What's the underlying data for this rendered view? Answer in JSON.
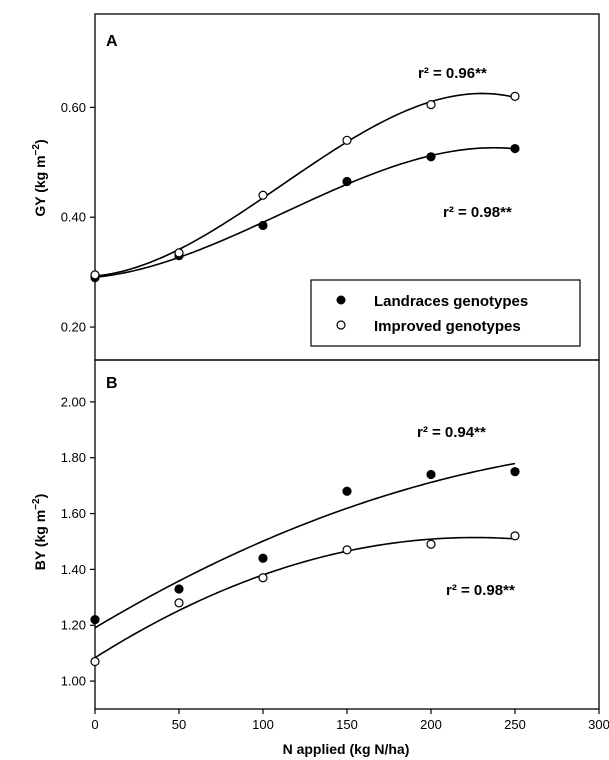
{
  "chart_data": [
    {
      "panel": "A",
      "type": "scatter",
      "ylabel": "GY (kg m⁻²)",
      "ylabel_main": "GY (kg m",
      "ylabel_sup": "−2",
      "ylabel_end": ")",
      "yticks": [
        "0.20",
        "0.40",
        "0.60"
      ],
      "ylim": [
        0.14,
        0.77
      ],
      "xlim": [
        0,
        300
      ],
      "series": [
        {
          "name": "Landraces genotypes",
          "marker": "filled",
          "x": [
            0,
            50,
            100,
            150,
            200,
            250
          ],
          "y": [
            0.29,
            0.33,
            0.385,
            0.465,
            0.51,
            0.525
          ],
          "fit_r2": "r² = 0.98**"
        },
        {
          "name": "Improved genotypes",
          "marker": "open",
          "x": [
            0,
            50,
            100,
            150,
            200,
            250
          ],
          "y": [
            0.295,
            0.335,
            0.44,
            0.54,
            0.605,
            0.62
          ],
          "fit_r2": "r² = 0.96**"
        }
      ],
      "legend_position": "bottom-right"
    },
    {
      "panel": "B",
      "type": "scatter",
      "ylabel": "BY (kg m⁻²)",
      "ylabel_main": "BY (kg m",
      "ylabel_sup": "−2",
      "ylabel_end": ")",
      "xlabel": "N applied (kg N/ha)",
      "yticks": [
        "1.00",
        "1.20",
        "1.40",
        "1.60",
        "1.80",
        "2.00"
      ],
      "xticks": [
        "0",
        "50",
        "100",
        "150",
        "200",
        "250",
        "300"
      ],
      "ylim": [
        0.9,
        2.15
      ],
      "xlim": [
        0,
        300
      ],
      "series": [
        {
          "name": "Landraces genotypes",
          "marker": "filled",
          "x": [
            0,
            50,
            100,
            150,
            200,
            250
          ],
          "y": [
            1.22,
            1.33,
            1.44,
            1.68,
            1.74,
            1.75
          ],
          "fit_r2": "r² = 0.94**"
        },
        {
          "name": "Improved genotypes",
          "marker": "open",
          "x": [
            0,
            50,
            100,
            150,
            200,
            250
          ],
          "y": [
            1.07,
            1.28,
            1.37,
            1.47,
            1.49,
            1.52
          ],
          "fit_r2": "r² = 0.98**"
        }
      ]
    }
  ]
}
